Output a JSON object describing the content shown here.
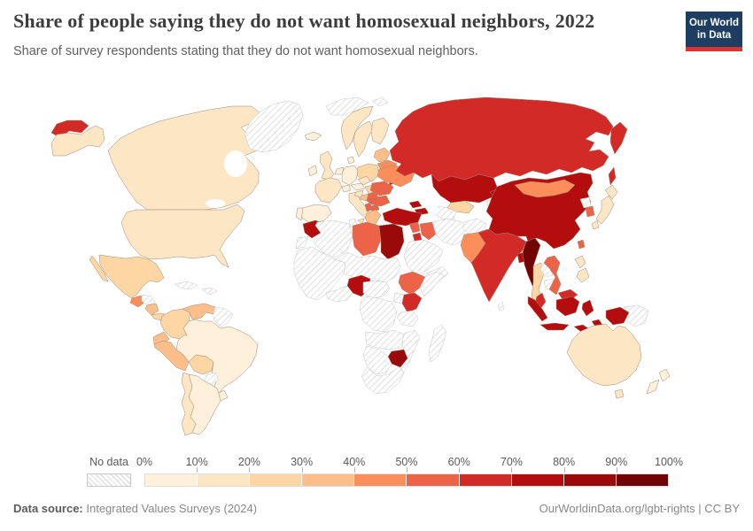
{
  "header": {
    "title": "Share of people saying they do not want homosexual neighbors, 2022",
    "subtitle": "Share of survey respondents stating that they do not want homosexual neighbors."
  },
  "logo": {
    "line1": "Our World",
    "line2": "in Data",
    "bg_color": "#1d3d63",
    "accent_color": "#d8352e"
  },
  "legend": {
    "no_data_label": "No data"
  },
  "footer": {
    "source_label": "Data source:",
    "source_value": " Integrated Values Surveys (2024)",
    "right_text": "OurWorldinData.org/lgbt-rights | CC BY"
  },
  "chart_data": {
    "type": "choropleth_map",
    "title": "Share of people saying they do not want homosexual neighbors, 2022",
    "unit": "%",
    "value_range": [
      0,
      100
    ],
    "legend_ticks": [
      "0%",
      "10%",
      "20%",
      "30%",
      "40%",
      "50%",
      "60%",
      "70%",
      "80%",
      "90%",
      "100%"
    ],
    "palette": [
      "#fef0da",
      "#fde6c4",
      "#fdd6a4",
      "#fdbe8a",
      "#fc8e5b",
      "#ec6348",
      "#d22b27",
      "#b30d0e",
      "#9b0a0a",
      "#730404"
    ],
    "no_data_pattern": "diagonal-hatch",
    "countries": {
      "canada": 14,
      "united-states": 15,
      "mexico": 25,
      "guatemala": 46,
      "honduras": null,
      "nicaragua": 36,
      "costa-rica-panama": 26,
      "cuba": null,
      "hispaniola": null,
      "colombia": 27,
      "venezuela": 35,
      "guyanas": null,
      "ecuador": 34,
      "peru": 36,
      "bolivia": 28,
      "brazil": 8,
      "paraguay": null,
      "uruguay": 9,
      "argentina": 8,
      "chile": 15,
      "greenland": null,
      "iceland": 5,
      "ireland": 5,
      "united-kingdom": 15,
      "norway": 15,
      "sweden": 13,
      "finland": 15,
      "denmark": 8,
      "baltic-states": 36,
      "belarus": 44,
      "poland": 26,
      "germany": 7,
      "netherlands": 6,
      "france": 14,
      "spain": 6,
      "portugal": 8,
      "switzerland": 8,
      "italy": 15,
      "czechia": 17,
      "austria": 9,
      "hungary": 27,
      "croatia": 18,
      "bosnia": 34,
      "serbia": 55,
      "albania": 56,
      "north-macedonia": 56,
      "bulgaria": 54,
      "romania": 55,
      "moldova": 72,
      "ukraine": 44,
      "greece": 36,
      "svalbard": null,
      "russia": 65,
      "kazakhstan": 75,
      "uzbekistan": 23,
      "turkmenistan": null,
      "kyrgyzstan": 74,
      "tajikistan": null,
      "afghanistan": null,
      "georgia": 72,
      "armenia-azerbaijan": 78,
      "turkey": 78,
      "syria": 57,
      "jordan": 65,
      "iraq": 56,
      "iran": null,
      "saudi-arabia": null,
      "yemen-oman": null,
      "pakistan": 45,
      "india": 64,
      "sri-lanka": null,
      "bangladesh": 74,
      "myanmar": 93,
      "thailand": 27,
      "laos": null,
      "cambodia": null,
      "vietnam": 55,
      "china": 77,
      "mongolia": 44,
      "north-korea": null,
      "south-korea": 58,
      "japan": 14,
      "taiwan": 55,
      "philippines": 17,
      "malaysia": 68,
      "indonesia": 76,
      "papua-new-guinea": null,
      "morocco": 78,
      "western-sahara": null,
      "algeria": null,
      "tunisia": null,
      "libya": 56,
      "egypt": 85,
      "west-africa": null,
      "sahel": null,
      "nigeria": 77,
      "guinea-coast": null,
      "cameroon-car": null,
      "ethiopia": 55,
      "somalia": null,
      "kenya": 66,
      "uganda": null,
      "drc": null,
      "tanzania": null,
      "angola-zambia": null,
      "mozambique": null,
      "zimbabwe": 84,
      "namibia-botswana": null,
      "south-africa": null,
      "madagascar": null,
      "australia": 15,
      "new-zealand": 5
    }
  }
}
